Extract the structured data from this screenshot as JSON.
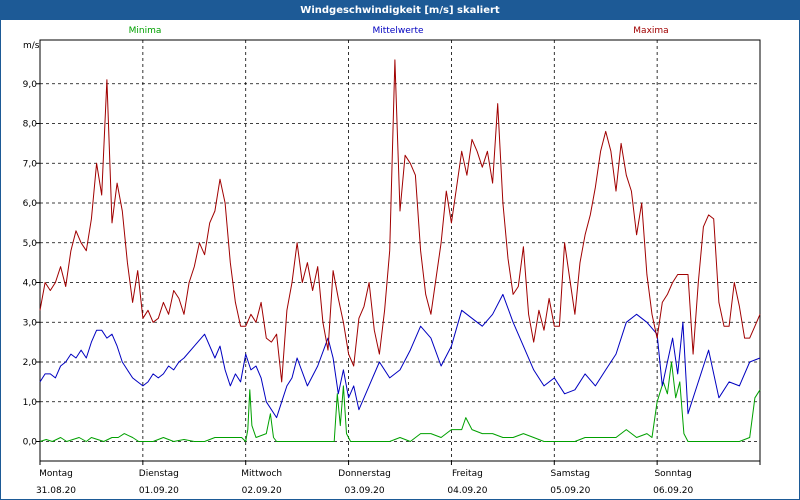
{
  "window": {
    "title": "Windgeschwindigkeit [m/s] skaliert"
  },
  "chart_data": {
    "type": "line",
    "title": "Windgeschwindigkeit [m/s] skaliert",
    "ylabel": "m/s",
    "ylim": [
      0,
      10
    ],
    "xlim": [
      0,
      7
    ],
    "grid": true,
    "legend_position": "top",
    "yticks": [
      "0,0",
      "1,0",
      "2,0",
      "3,0",
      "4,0",
      "5,0",
      "6,0",
      "7,0",
      "8,0",
      "9,0"
    ],
    "days": [
      {
        "day": "Montag",
        "date": "31.08.20"
      },
      {
        "day": "Dienstag",
        "date": "01.09.20"
      },
      {
        "day": "Mittwoch",
        "date": "02.09.20"
      },
      {
        "day": "Donnerstag",
        "date": "03.09.20"
      },
      {
        "day": "Freitag",
        "date": "04.09.20"
      },
      {
        "day": "Samstag",
        "date": "05.09.20"
      },
      {
        "day": "Sonntag",
        "date": "06.09.20"
      }
    ],
    "series": [
      {
        "name": "Minima",
        "color": "#00a000",
        "x": [
          0,
          0.06,
          0.12,
          0.2,
          0.26,
          0.32,
          0.38,
          0.45,
          0.5,
          0.56,
          0.62,
          0.7,
          0.76,
          0.82,
          0.9,
          0.96,
          1.0,
          1.1,
          1.2,
          1.3,
          1.4,
          1.5,
          1.6,
          1.7,
          1.8,
          1.9,
          1.96,
          2.0,
          2.02,
          2.04,
          2.06,
          2.1,
          2.2,
          2.24,
          2.27,
          2.3,
          2.4,
          2.5,
          2.6,
          2.7,
          2.8,
          2.86,
          2.89,
          2.92,
          2.95,
          2.98,
          3.02,
          3.05,
          3.1,
          3.2,
          3.4,
          3.5,
          3.6,
          3.7,
          3.8,
          3.9,
          4.0,
          4.1,
          4.14,
          4.2,
          4.3,
          4.4,
          4.5,
          4.6,
          4.7,
          4.8,
          4.9,
          5.0,
          5.1,
          5.2,
          5.3,
          5.4,
          5.5,
          5.6,
          5.7,
          5.8,
          5.9,
          5.95,
          6.0,
          6.06,
          6.1,
          6.14,
          6.18,
          6.22,
          6.26,
          6.3,
          6.4,
          6.5,
          6.6,
          6.7,
          6.8,
          6.9,
          6.95,
          7.0
        ],
        "y": [
          0,
          0.05,
          0,
          0.1,
          0,
          0.05,
          0.1,
          0,
          0.1,
          0.05,
          0,
          0.1,
          0.1,
          0.2,
          0.1,
          0,
          0,
          0,
          0.1,
          0,
          0.05,
          0,
          0,
          0.1,
          0.1,
          0.1,
          0.1,
          0,
          0.3,
          1.3,
          0.4,
          0.1,
          0.2,
          0.7,
          0.1,
          0,
          0,
          0,
          0,
          0,
          0,
          0,
          1.2,
          0.4,
          1.4,
          0.2,
          0,
          0,
          0,
          0,
          0,
          0.1,
          0,
          0.2,
          0.2,
          0.1,
          0.3,
          0.3,
          0.6,
          0.3,
          0.2,
          0.2,
          0.1,
          0.1,
          0.2,
          0.1,
          0,
          0,
          0,
          0,
          0.1,
          0.1,
          0.1,
          0.1,
          0.3,
          0.1,
          0.2,
          0.1,
          1.0,
          1.5,
          1.2,
          2.0,
          1.1,
          1.5,
          0.2,
          0,
          0,
          0,
          0,
          0,
          0,
          0.1,
          1.1,
          1.3
        ]
      },
      {
        "name": "Mittelwerte",
        "color": "#0000c0",
        "x": [
          0,
          0.05,
          0.1,
          0.15,
          0.2,
          0.25,
          0.3,
          0.35,
          0.4,
          0.45,
          0.5,
          0.55,
          0.6,
          0.65,
          0.7,
          0.75,
          0.8,
          0.85,
          0.9,
          0.95,
          1.0,
          1.05,
          1.1,
          1.15,
          1.2,
          1.25,
          1.3,
          1.35,
          1.4,
          1.5,
          1.6,
          1.7,
          1.75,
          1.8,
          1.85,
          1.9,
          1.95,
          2.0,
          2.05,
          2.1,
          2.15,
          2.2,
          2.3,
          2.35,
          2.4,
          2.45,
          2.5,
          2.6,
          2.7,
          2.8,
          2.85,
          2.9,
          2.95,
          3.0,
          3.05,
          3.1,
          3.2,
          3.3,
          3.4,
          3.5,
          3.6,
          3.7,
          3.8,
          3.9,
          4.0,
          4.1,
          4.2,
          4.3,
          4.4,
          4.5,
          4.6,
          4.7,
          4.8,
          4.9,
          5.0,
          5.1,
          5.2,
          5.3,
          5.4,
          5.5,
          5.6,
          5.7,
          5.8,
          5.9,
          6.0,
          6.05,
          6.1,
          6.15,
          6.2,
          6.25,
          6.3,
          6.4,
          6.5,
          6.6,
          6.7,
          6.8,
          6.9,
          7.0
        ],
        "y": [
          1.5,
          1.7,
          1.7,
          1.6,
          1.9,
          2.0,
          2.2,
          2.1,
          2.3,
          2.1,
          2.5,
          2.8,
          2.8,
          2.6,
          2.7,
          2.4,
          2.0,
          1.8,
          1.6,
          1.5,
          1.4,
          1.5,
          1.7,
          1.6,
          1.7,
          1.9,
          1.8,
          2.0,
          2.1,
          2.4,
          2.7,
          2.1,
          2.4,
          1.8,
          1.4,
          1.7,
          1.5,
          2.2,
          1.8,
          1.9,
          1.6,
          1.0,
          0.6,
          1.0,
          1.4,
          1.6,
          2.1,
          1.4,
          1.9,
          2.6,
          2.1,
          1.2,
          1.8,
          1.1,
          1.4,
          0.8,
          1.4,
          2.0,
          1.6,
          1.8,
          2.3,
          2.9,
          2.6,
          1.9,
          2.4,
          3.3,
          3.1,
          2.9,
          3.2,
          3.7,
          3.0,
          2.4,
          1.8,
          1.4,
          1.6,
          1.2,
          1.3,
          1.7,
          1.4,
          1.8,
          2.2,
          3.0,
          3.2,
          3.0,
          2.7,
          1.4,
          2.0,
          2.6,
          1.7,
          3.0,
          0.7,
          1.5,
          2.3,
          1.1,
          1.5,
          1.4,
          2.0,
          2.1
        ]
      },
      {
        "name": "Maxima",
        "color": "#a00000",
        "x": [
          0,
          0.05,
          0.1,
          0.15,
          0.2,
          0.25,
          0.3,
          0.35,
          0.4,
          0.45,
          0.5,
          0.55,
          0.6,
          0.65,
          0.7,
          0.75,
          0.8,
          0.85,
          0.9,
          0.95,
          1.0,
          1.05,
          1.1,
          1.15,
          1.2,
          1.25,
          1.3,
          1.35,
          1.4,
          1.45,
          1.5,
          1.55,
          1.6,
          1.65,
          1.7,
          1.75,
          1.8,
          1.85,
          1.9,
          1.95,
          2.0,
          2.05,
          2.1,
          2.15,
          2.2,
          2.25,
          2.3,
          2.35,
          2.4,
          2.45,
          2.5,
          2.55,
          2.6,
          2.65,
          2.7,
          2.75,
          2.8,
          2.85,
          2.9,
          2.95,
          3.0,
          3.05,
          3.1,
          3.15,
          3.2,
          3.25,
          3.3,
          3.35,
          3.4,
          3.45,
          3.5,
          3.55,
          3.6,
          3.65,
          3.7,
          3.75,
          3.8,
          3.85,
          3.9,
          3.95,
          4.0,
          4.05,
          4.1,
          4.15,
          4.2,
          4.25,
          4.3,
          4.35,
          4.4,
          4.45,
          4.5,
          4.55,
          4.6,
          4.65,
          4.7,
          4.75,
          4.8,
          4.85,
          4.9,
          4.95,
          5.0,
          5.05,
          5.1,
          5.15,
          5.2,
          5.25,
          5.3,
          5.35,
          5.4,
          5.45,
          5.5,
          5.55,
          5.6,
          5.65,
          5.7,
          5.75,
          5.8,
          5.85,
          5.9,
          5.95,
          6.0,
          6.05,
          6.1,
          6.15,
          6.2,
          6.25,
          6.3,
          6.35,
          6.4,
          6.45,
          6.5,
          6.55,
          6.6,
          6.65,
          6.7,
          6.75,
          6.8,
          6.85,
          6.9,
          6.95,
          7.0
        ],
        "y": [
          3.3,
          4.0,
          3.8,
          4.0,
          4.4,
          3.9,
          4.8,
          5.3,
          5.0,
          4.8,
          5.6,
          7.0,
          6.2,
          9.1,
          5.5,
          6.5,
          5.8,
          4.5,
          3.5,
          4.3,
          3.1,
          3.3,
          3.0,
          3.1,
          3.5,
          3.2,
          3.8,
          3.6,
          3.2,
          4.0,
          4.4,
          5.0,
          4.7,
          5.5,
          5.8,
          6.6,
          6.0,
          4.5,
          3.5,
          2.9,
          2.9,
          3.2,
          3.0,
          3.5,
          2.6,
          2.5,
          2.7,
          1.5,
          3.3,
          4.0,
          5.0,
          4.0,
          4.5,
          3.8,
          4.4,
          3.0,
          2.3,
          4.3,
          3.6,
          3.0,
          2.2,
          1.9,
          3.1,
          3.4,
          4.0,
          2.8,
          2.2,
          3.3,
          4.8,
          9.6,
          5.8,
          7.2,
          7.0,
          6.7,
          4.8,
          3.7,
          3.2,
          4.1,
          5.0,
          6.3,
          5.5,
          6.4,
          7.3,
          6.7,
          7.6,
          7.3,
          6.9,
          7.3,
          6.5,
          8.5,
          6.0,
          4.6,
          3.7,
          3.9,
          4.9,
          3.2,
          2.5,
          3.3,
          2.8,
          3.6,
          2.9,
          2.9,
          5.0,
          4.1,
          3.2,
          4.5,
          5.2,
          5.7,
          6.4,
          7.3,
          7.8,
          7.3,
          6.3,
          7.5,
          6.7,
          6.3,
          5.2,
          6.0,
          4.2,
          3.2,
          2.6,
          3.5,
          3.7,
          4.0,
          4.2,
          4.2,
          4.2,
          2.2,
          4.0,
          5.4,
          5.7,
          5.6,
          3.5,
          2.9,
          2.9,
          4.0,
          3.4,
          2.6,
          2.6,
          2.9,
          3.2
        ]
      }
    ]
  }
}
